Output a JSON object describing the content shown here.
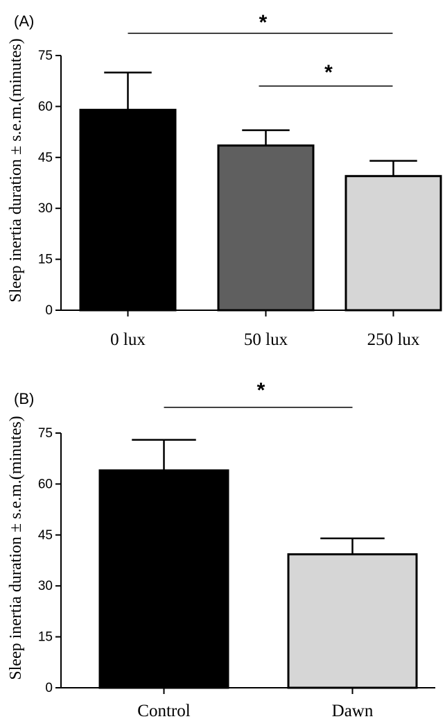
{
  "chart_data": [
    {
      "panel": "(A)",
      "type": "bar",
      "categories": [
        "0 lux",
        "50 lux",
        "250 lux"
      ],
      "values": [
        59,
        48.5,
        39.5
      ],
      "error": [
        11,
        4.5,
        4.5
      ],
      "colors": [
        "#000000",
        "#5f5f5f",
        "#d6d6d6"
      ],
      "ylabel": "Sleep inertia duration ± s.e.m.(minutes)",
      "ylim": [
        0,
        75
      ],
      "yticks": [
        0,
        15,
        30,
        45,
        60,
        75
      ],
      "grid": false,
      "significance": [
        {
          "from": 0,
          "to": 2,
          "label": "*"
        },
        {
          "from": 1,
          "to": 2,
          "label": "*"
        }
      ]
    },
    {
      "panel": "(B)",
      "type": "bar",
      "categories": [
        "Control",
        "Dawn"
      ],
      "values": [
        64,
        39.3
      ],
      "error": [
        9,
        4.7
      ],
      "colors": [
        "#000000",
        "#d6d6d6"
      ],
      "ylabel": "Sleep inertia duration ± s.e.m.(minutes)",
      "ylim": [
        0,
        75
      ],
      "yticks": [
        0,
        15,
        30,
        45,
        60,
        75
      ],
      "grid": false,
      "significance": [
        {
          "from": 0,
          "to": 1,
          "label": "*"
        }
      ]
    }
  ]
}
